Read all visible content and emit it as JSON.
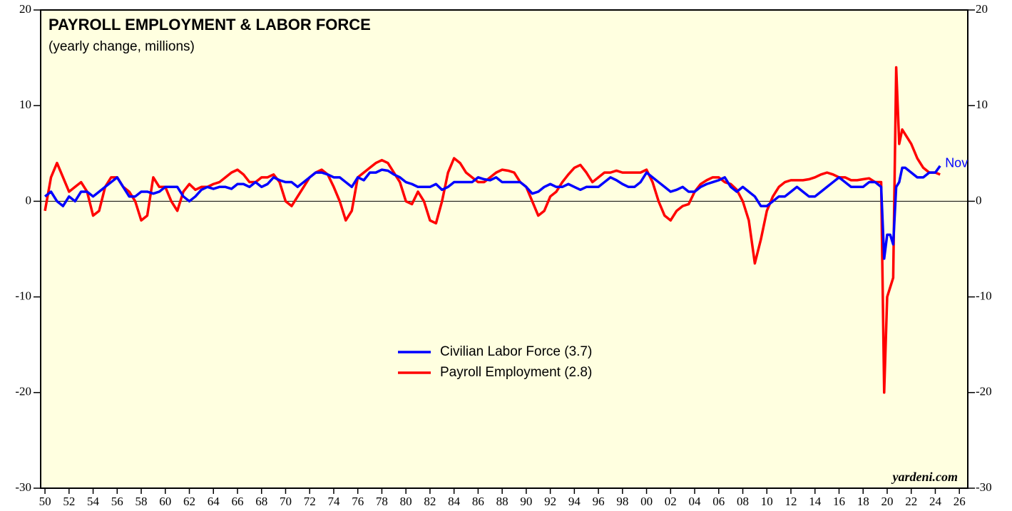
{
  "chart_data": {
    "type": "line",
    "title": "PAYROLL EMPLOYMENT & LABOR FORCE",
    "subtitle": "(yearly change, millions)",
    "annotations": {
      "end_label": "Nov",
      "source": "yardeni.com"
    },
    "x": [
      1950.5,
      1951,
      1951.5,
      1952,
      1952.5,
      1953,
      1953.5,
      1954,
      1954.5,
      1955,
      1955.5,
      1956,
      1956.5,
      1957,
      1957.5,
      1958,
      1958.5,
      1959,
      1959.5,
      1960,
      1960.5,
      1961,
      1961.5,
      1962,
      1962.5,
      1963,
      1963.5,
      1964,
      1964.5,
      1965,
      1965.5,
      1966,
      1966.5,
      1967,
      1967.5,
      1968,
      1968.5,
      1969,
      1969.5,
      1970,
      1970.5,
      1971,
      1971.5,
      1972,
      1972.5,
      1973,
      1973.5,
      1974,
      1974.5,
      1975,
      1975.5,
      1976,
      1976.5,
      1977,
      1977.5,
      1978,
      1978.5,
      1979,
      1979.5,
      1980,
      1980.5,
      1981,
      1981.5,
      1982,
      1982.5,
      1983,
      1983.5,
      1984,
      1984.5,
      1985,
      1985.5,
      1986,
      1986.5,
      1987,
      1987.5,
      1988,
      1988.5,
      1989,
      1989.5,
      1990,
      1990.5,
      1991,
      1991.5,
      1992,
      1992.5,
      1993,
      1993.5,
      1994,
      1994.5,
      1995,
      1995.5,
      1996,
      1996.5,
      1997,
      1997.5,
      1998,
      1998.5,
      1999,
      1999.5,
      2000,
      2000.5,
      2001,
      2001.5,
      2002,
      2002.5,
      2003,
      2003.5,
      2004,
      2004.5,
      2005,
      2005.5,
      2006,
      2006.5,
      2007,
      2007.5,
      2008,
      2008.5,
      2009,
      2009.5,
      2010,
      2010.5,
      2011,
      2011.5,
      2012,
      2012.5,
      2013,
      2013.5,
      2014,
      2014.5,
      2015,
      2015.5,
      2016,
      2016.5,
      2017,
      2017.5,
      2018,
      2018.5,
      2019,
      2019.5,
      2020,
      2020.25,
      2020.5,
      2020.75,
      2021,
      2021.25,
      2021.5,
      2021.75,
      2022,
      2022.5,
      2023,
      2023.5,
      2024,
      2024.5,
      2024.9
    ],
    "series": [
      {
        "name": "Civilian Labor Force (3.7)",
        "color": "#0000ff",
        "values": [
          0.5,
          1,
          0,
          -0.5,
          0.5,
          0,
          1,
          1,
          0.5,
          1,
          1.5,
          2,
          2.5,
          1.5,
          0.5,
          0.5,
          1,
          1,
          0.8,
          1,
          1.5,
          1.5,
          1.5,
          0.5,
          0,
          0.5,
          1.2,
          1.5,
          1.3,
          1.5,
          1.5,
          1.3,
          1.8,
          1.8,
          1.5,
          2,
          1.5,
          1.8,
          2.5,
          2.2,
          2,
          2,
          1.5,
          2,
          2.5,
          3,
          3,
          2.8,
          2.5,
          2.5,
          2,
          1.5,
          2.5,
          2.2,
          3,
          3,
          3.3,
          3.2,
          2.8,
          2.5,
          2,
          1.8,
          1.5,
          1.5,
          1.5,
          1.8,
          1.2,
          1.5,
          2,
          2,
          2,
          2,
          2.5,
          2.3,
          2.2,
          2.5,
          2,
          2,
          2,
          2,
          1.5,
          0.8,
          1,
          1.5,
          1.8,
          1.5,
          1.5,
          1.8,
          1.5,
          1.2,
          1.5,
          1.5,
          1.5,
          2,
          2.5,
          2.2,
          1.8,
          1.5,
          1.5,
          2,
          3,
          2.5,
          2,
          1.5,
          1,
          1.2,
          1.5,
          1,
          1,
          1.5,
          1.8,
          2,
          2.2,
          2.5,
          1.5,
          1,
          1.5,
          1,
          0.5,
          -0.5,
          -0.5,
          0,
          0.5,
          0.5,
          1,
          1.5,
          1,
          0.5,
          0.5,
          1,
          1.5,
          2,
          2.5,
          2,
          1.5,
          1.5,
          1.5,
          2,
          2,
          1.5,
          -6,
          -3.5,
          -3.5,
          -4.5,
          1.5,
          2,
          3.5,
          3.5,
          3,
          2.5,
          2.5,
          3,
          3,
          3.7
        ]
      },
      {
        "name": "Payroll Employment (2.8)",
        "color": "#ff0000",
        "values": [
          -1,
          2.5,
          4,
          2.5,
          1,
          1.5,
          2,
          1,
          -1.5,
          -1,
          1.5,
          2.5,
          2.5,
          1.5,
          1,
          0,
          -2,
          -1.5,
          2.5,
          1.5,
          1.5,
          0,
          -1,
          1,
          1.8,
          1.2,
          1.5,
          1.5,
          1.8,
          2,
          2.5,
          3,
          3.3,
          2.8,
          2,
          2,
          2.5,
          2.5,
          2.8,
          2,
          0,
          -0.5,
          0.5,
          1.5,
          2.5,
          3,
          3.3,
          2.8,
          1.5,
          0,
          -2,
          -1,
          2.5,
          3,
          3.5,
          4,
          4.3,
          4,
          3,
          2,
          0,
          -0.3,
          1,
          0,
          -2,
          -2.3,
          0,
          3,
          4.5,
          4,
          3,
          2.5,
          2,
          2,
          2.5,
          3,
          3.3,
          3.2,
          3,
          2,
          1.5,
          0,
          -1.5,
          -1,
          0.5,
          1,
          2,
          2.8,
          3.5,
          3.8,
          3,
          2,
          2.5,
          3,
          3,
          3.2,
          3,
          3,
          3,
          3,
          3.3,
          2,
          0,
          -1.5,
          -2,
          -1,
          -0.5,
          -0.3,
          1,
          1.8,
          2.2,
          2.5,
          2.5,
          2,
          1.8,
          1.2,
          0,
          -2,
          -6.5,
          -4,
          -1,
          0.5,
          1.5,
          2,
          2.2,
          2.2,
          2.2,
          2.3,
          2.5,
          2.8,
          3,
          2.8,
          2.5,
          2.5,
          2.2,
          2.2,
          2.3,
          2.4,
          2,
          2,
          -20,
          -10,
          -9,
          -8,
          14,
          6,
          7.5,
          7,
          6,
          4.5,
          3.5,
          3,
          3,
          2.8
        ]
      }
    ],
    "xlim": [
      1950.14,
      2027.2
    ],
    "xticks": [
      {
        "value": 1950.5,
        "label": "50"
      },
      {
        "value": 1952.5,
        "label": "52"
      },
      {
        "value": 1954.5,
        "label": "54"
      },
      {
        "value": 1956.5,
        "label": "56"
      },
      {
        "value": 1958.5,
        "label": "58"
      },
      {
        "value": 1960.5,
        "label": "60"
      },
      {
        "value": 1962.5,
        "label": "62"
      },
      {
        "value": 1964.5,
        "label": "64"
      },
      {
        "value": 1966.5,
        "label": "66"
      },
      {
        "value": 1968.5,
        "label": "68"
      },
      {
        "value": 1970.5,
        "label": "70"
      },
      {
        "value": 1972.5,
        "label": "72"
      },
      {
        "value": 1974.5,
        "label": "74"
      },
      {
        "value": 1976.5,
        "label": "76"
      },
      {
        "value": 1978.5,
        "label": "78"
      },
      {
        "value": 1980.5,
        "label": "80"
      },
      {
        "value": 1982.5,
        "label": "82"
      },
      {
        "value": 1984.5,
        "label": "84"
      },
      {
        "value": 1986.5,
        "label": "86"
      },
      {
        "value": 1988.5,
        "label": "88"
      },
      {
        "value": 1990.5,
        "label": "90"
      },
      {
        "value": 1992.5,
        "label": "92"
      },
      {
        "value": 1994.5,
        "label": "94"
      },
      {
        "value": 1996.5,
        "label": "96"
      },
      {
        "value": 1998.5,
        "label": "98"
      },
      {
        "value": 2000.5,
        "label": "00"
      },
      {
        "value": 2002.5,
        "label": "02"
      },
      {
        "value": 2004.5,
        "label": "04"
      },
      {
        "value": 2006.5,
        "label": "06"
      },
      {
        "value": 2008.5,
        "label": "08"
      },
      {
        "value": 2010.5,
        "label": "10"
      },
      {
        "value": 2012.5,
        "label": "12"
      },
      {
        "value": 2014.5,
        "label": "14"
      },
      {
        "value": 2016.5,
        "label": "16"
      },
      {
        "value": 2018.5,
        "label": "18"
      },
      {
        "value": 2020.5,
        "label": "20"
      },
      {
        "value": 2022.5,
        "label": "22"
      },
      {
        "value": 2024.5,
        "label": "24"
      },
      {
        "value": 2026.5,
        "label": "26"
      }
    ],
    "ylim": [
      -30,
      20
    ],
    "yticks": [
      -30,
      -20,
      -10,
      0,
      10,
      20
    ],
    "zero_line": true,
    "background": "#ffffe0"
  }
}
